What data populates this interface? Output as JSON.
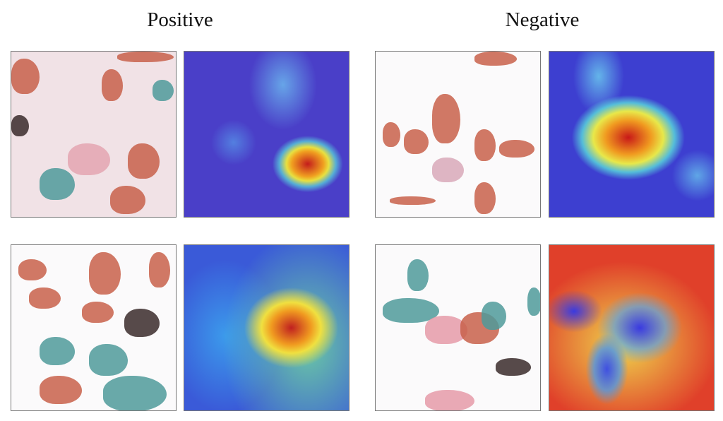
{
  "titles": {
    "positive": "Positive",
    "negative": "Negative"
  },
  "panels": [
    {
      "group": "Positive",
      "row": 1,
      "type": "micrograph"
    },
    {
      "group": "Positive",
      "row": 1,
      "type": "heatmap-overlay"
    },
    {
      "group": "Negative",
      "row": 1,
      "type": "micrograph"
    },
    {
      "group": "Negative",
      "row": 1,
      "type": "heatmap-overlay"
    },
    {
      "group": "Positive",
      "row": 2,
      "type": "micrograph"
    },
    {
      "group": "Positive",
      "row": 2,
      "type": "heatmap-overlay"
    },
    {
      "group": "Negative",
      "row": 2,
      "type": "micrograph"
    },
    {
      "group": "Negative",
      "row": 2,
      "type": "heatmap-overlay"
    }
  ],
  "colors": {
    "heat_high": "#c41c1c",
    "heat_low": "#4a3fc8",
    "cell_stain": "#c8604a",
    "cell_teal": "#4f9a9a"
  }
}
